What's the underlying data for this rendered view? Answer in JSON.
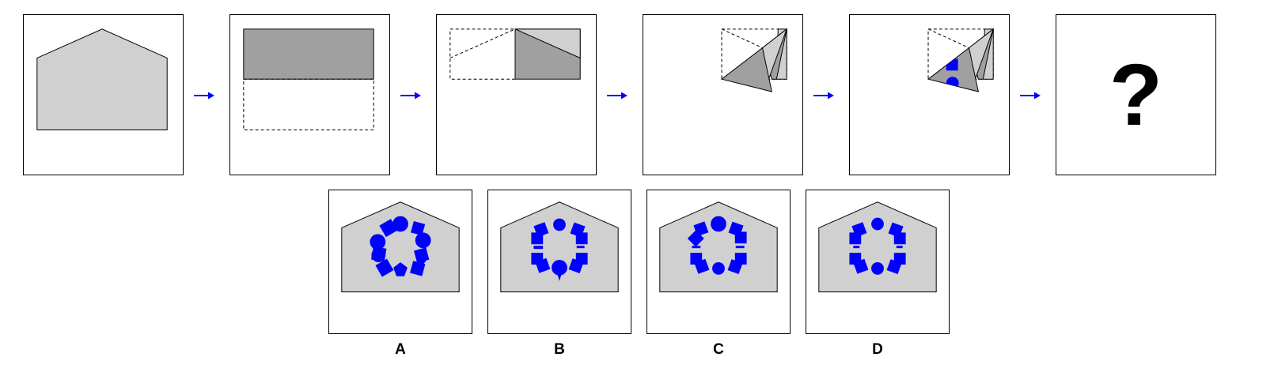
{
  "sequence": {
    "step_count": 6,
    "final_step_label": "?"
  },
  "options": [
    {
      "label": "A"
    },
    {
      "label": "B"
    },
    {
      "label": "C"
    },
    {
      "label": "D"
    }
  ],
  "colors": {
    "paper_fill": "#d0d0d0",
    "folded_fill": "#a0a0a0",
    "hole_fill": "#0000ff",
    "arrow": "#0000ff",
    "outline": "#000000"
  }
}
